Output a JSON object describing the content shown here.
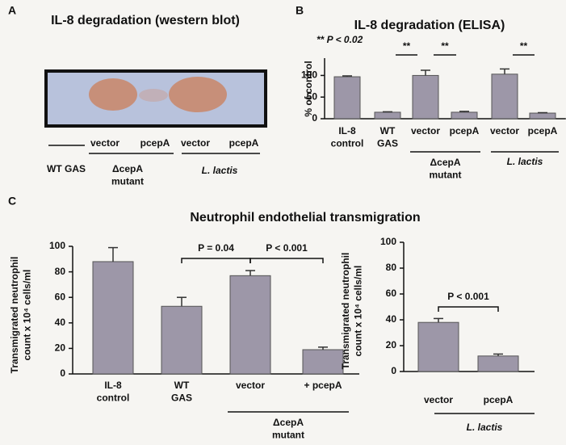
{
  "panel_labels": [
    "A",
    "B",
    "C"
  ],
  "blot": {
    "title": "IL-8 degradation (western blot)",
    "lane_labels": [
      "vector",
      "pcepA",
      "vector",
      "pcepA"
    ],
    "group_labels": [
      "WT GAS",
      "ΔcepA\nmutant",
      "L. lactis"
    ]
  },
  "section_c_title": "Neutrophil endothelial transmigration",
  "chart_data": [
    {
      "type": "bar",
      "title": "IL-8 degradation (ELISA)",
      "annotation": "** P < 0.02",
      "ylabel": "% of control",
      "categories": [
        "IL-8\ncontrol",
        "WT\nGAS",
        "vector",
        "pcepA",
        "vector",
        "pcepA"
      ],
      "values": [
        97,
        15,
        100,
        15,
        103,
        13
      ],
      "errors": [
        2,
        1,
        12,
        2,
        12,
        1
      ],
      "groups": [
        "ΔcepA\nmutant",
        "L. lactis"
      ],
      "significance": [
        "**",
        "**",
        "**"
      ],
      "ylim": [
        0,
        140
      ],
      "yticks": [
        0,
        50,
        100
      ],
      "color": "#9d97a8"
    },
    {
      "type": "bar",
      "ylabel": "Transmigrated neutrophil\ncount x 10⁴ cells/ml",
      "categories": [
        "IL-8\ncontrol",
        "WT\nGAS",
        "vector",
        "+ pcepA"
      ],
      "values": [
        88,
        53,
        77,
        19
      ],
      "errors": [
        11,
        7,
        4,
        2
      ],
      "groups": [
        "ΔcepA\nmutant"
      ],
      "significance": [
        "P =  0.04",
        "P < 0.001"
      ],
      "ylim": [
        0,
        100
      ],
      "yticks": [
        0,
        20,
        40,
        60,
        80,
        100
      ],
      "color": "#9d97a8"
    },
    {
      "type": "bar",
      "ylabel": "Transmigrated neutrophil\ncount x 10⁴ cells/ml",
      "categories": [
        "vector",
        "pcepA"
      ],
      "values": [
        38,
        12
      ],
      "errors": [
        3,
        1.5
      ],
      "groups": [
        "L. lactis"
      ],
      "significance": [
        "P < 0.001"
      ],
      "ylim": [
        0,
        100
      ],
      "yticks": [
        0,
        20,
        40,
        60,
        80,
        100
      ],
      "color": "#9d97a8"
    }
  ]
}
